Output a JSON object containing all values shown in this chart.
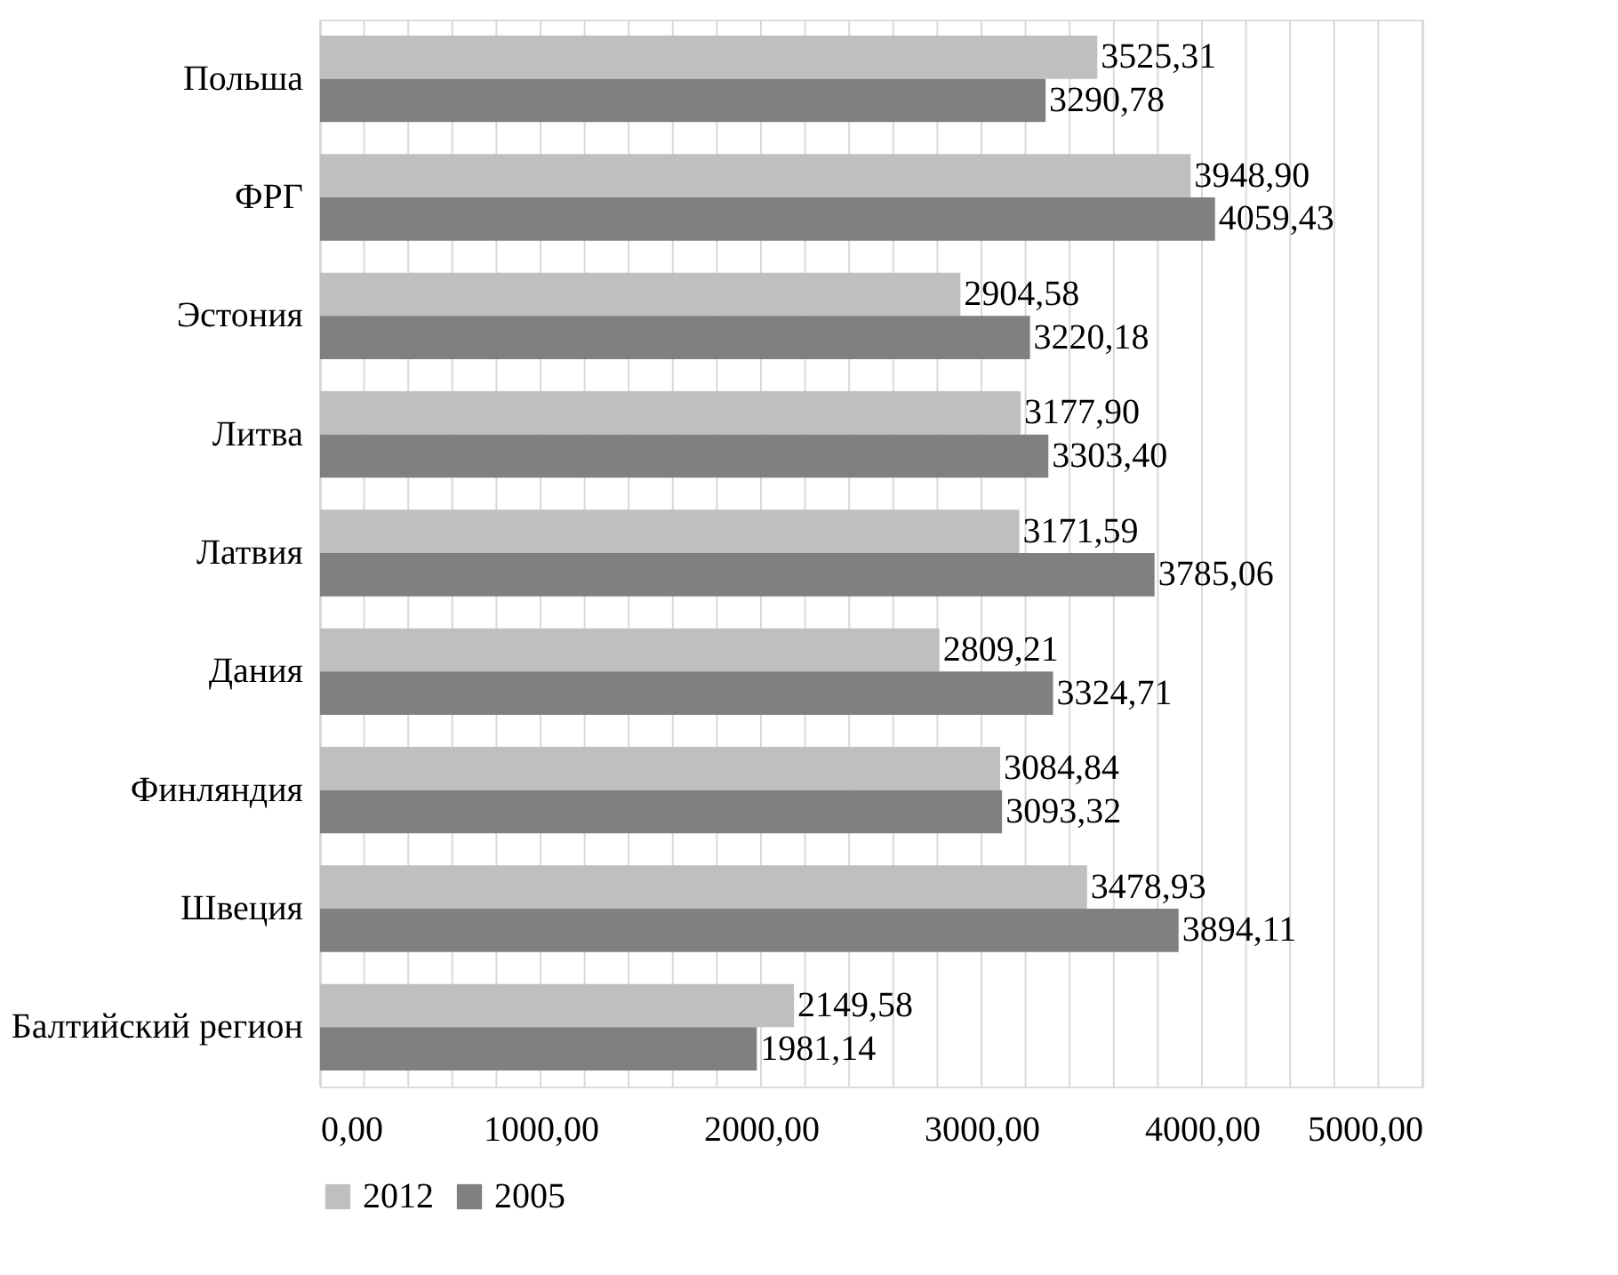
{
  "chart_data": {
    "type": "bar",
    "orientation": "horizontal",
    "categories": [
      "Польша",
      "ФРГ",
      "Эстония",
      "Литва",
      "Латвия",
      "Дания",
      "Финляндия",
      "Швеция",
      "Балтийский регион"
    ],
    "series": [
      {
        "name": "2012",
        "color": "#bfbfbf",
        "values": [
          3525.31,
          3948.9,
          2904.58,
          3177.9,
          3171.59,
          2809.21,
          3084.84,
          3478.93,
          2149.58
        ],
        "value_labels": [
          "3525,31",
          "3948,90",
          "2904,58",
          "3177,90",
          "3171,59",
          "2809,21",
          "3084,84",
          "3478,93",
          "2149,58"
        ]
      },
      {
        "name": "2005",
        "color": "#808080",
        "values": [
          3290.78,
          4059.43,
          3220.18,
          3303.4,
          3785.06,
          3324.71,
          3093.32,
          3894.11,
          1981.14
        ],
        "value_labels": [
          "3290,78",
          "4059,43",
          "3220,18",
          "3303,40",
          "3785,06",
          "3324,71",
          "3093,32",
          "3894,11",
          "1981,14"
        ]
      }
    ],
    "xlim": [
      0,
      5000
    ],
    "xticks": [
      {
        "value": 0,
        "label": "0,00"
      },
      {
        "value": 200,
        "label": null
      },
      {
        "value": 400,
        "label": null
      },
      {
        "value": 600,
        "label": null
      },
      {
        "value": 800,
        "label": null
      },
      {
        "value": 1000,
        "label": "1000,00"
      },
      {
        "value": 1200,
        "label": null
      },
      {
        "value": 1400,
        "label": null
      },
      {
        "value": 1600,
        "label": null
      },
      {
        "value": 1800,
        "label": null
      },
      {
        "value": 2000,
        "label": "2000,00"
      },
      {
        "value": 2200,
        "label": null
      },
      {
        "value": 2400,
        "label": null
      },
      {
        "value": 2600,
        "label": null
      },
      {
        "value": 2800,
        "label": null
      },
      {
        "value": 3000,
        "label": "3000,00"
      },
      {
        "value": 3200,
        "label": null
      },
      {
        "value": 3400,
        "label": null
      },
      {
        "value": 3600,
        "label": null
      },
      {
        "value": 3800,
        "label": null
      },
      {
        "value": 4000,
        "label": "4000,00"
      },
      {
        "value": 4200,
        "label": null
      },
      {
        "value": 4400,
        "label": null
      },
      {
        "value": 4600,
        "label": null
      },
      {
        "value": 4800,
        "label": null
      },
      {
        "value": 5000,
        "label": "5000,00"
      }
    ],
    "grid": "x",
    "legend": "bottom"
  }
}
